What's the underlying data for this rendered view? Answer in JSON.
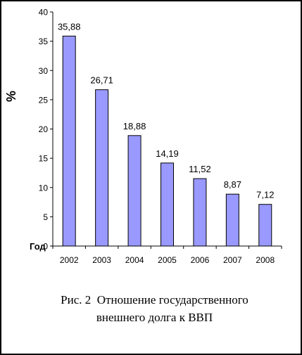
{
  "chart_data": {
    "type": "bar",
    "categories": [
      "2002",
      "2003",
      "2004",
      "2005",
      "2006",
      "2007",
      "2008"
    ],
    "values": [
      35.88,
      26.71,
      18.88,
      14.19,
      11.52,
      8.87,
      7.12
    ],
    "data_labels": [
      "35,88",
      "26,71",
      "18,88",
      "14,19",
      "11,52",
      "8,87",
      "7,12"
    ],
    "xlabel": "Год",
    "ylabel": "%",
    "yticks": [
      "0",
      "5",
      "10",
      "15",
      "20",
      "25",
      "30",
      "35",
      "40"
    ],
    "ylim": [
      0,
      40
    ],
    "grid": false,
    "bar_color": "#9999FF",
    "bar_edge_color": "#000000"
  },
  "caption": {
    "line1": "Рис. 2  Отношение государственного",
    "line2": "внешнего долга к ВВП"
  }
}
